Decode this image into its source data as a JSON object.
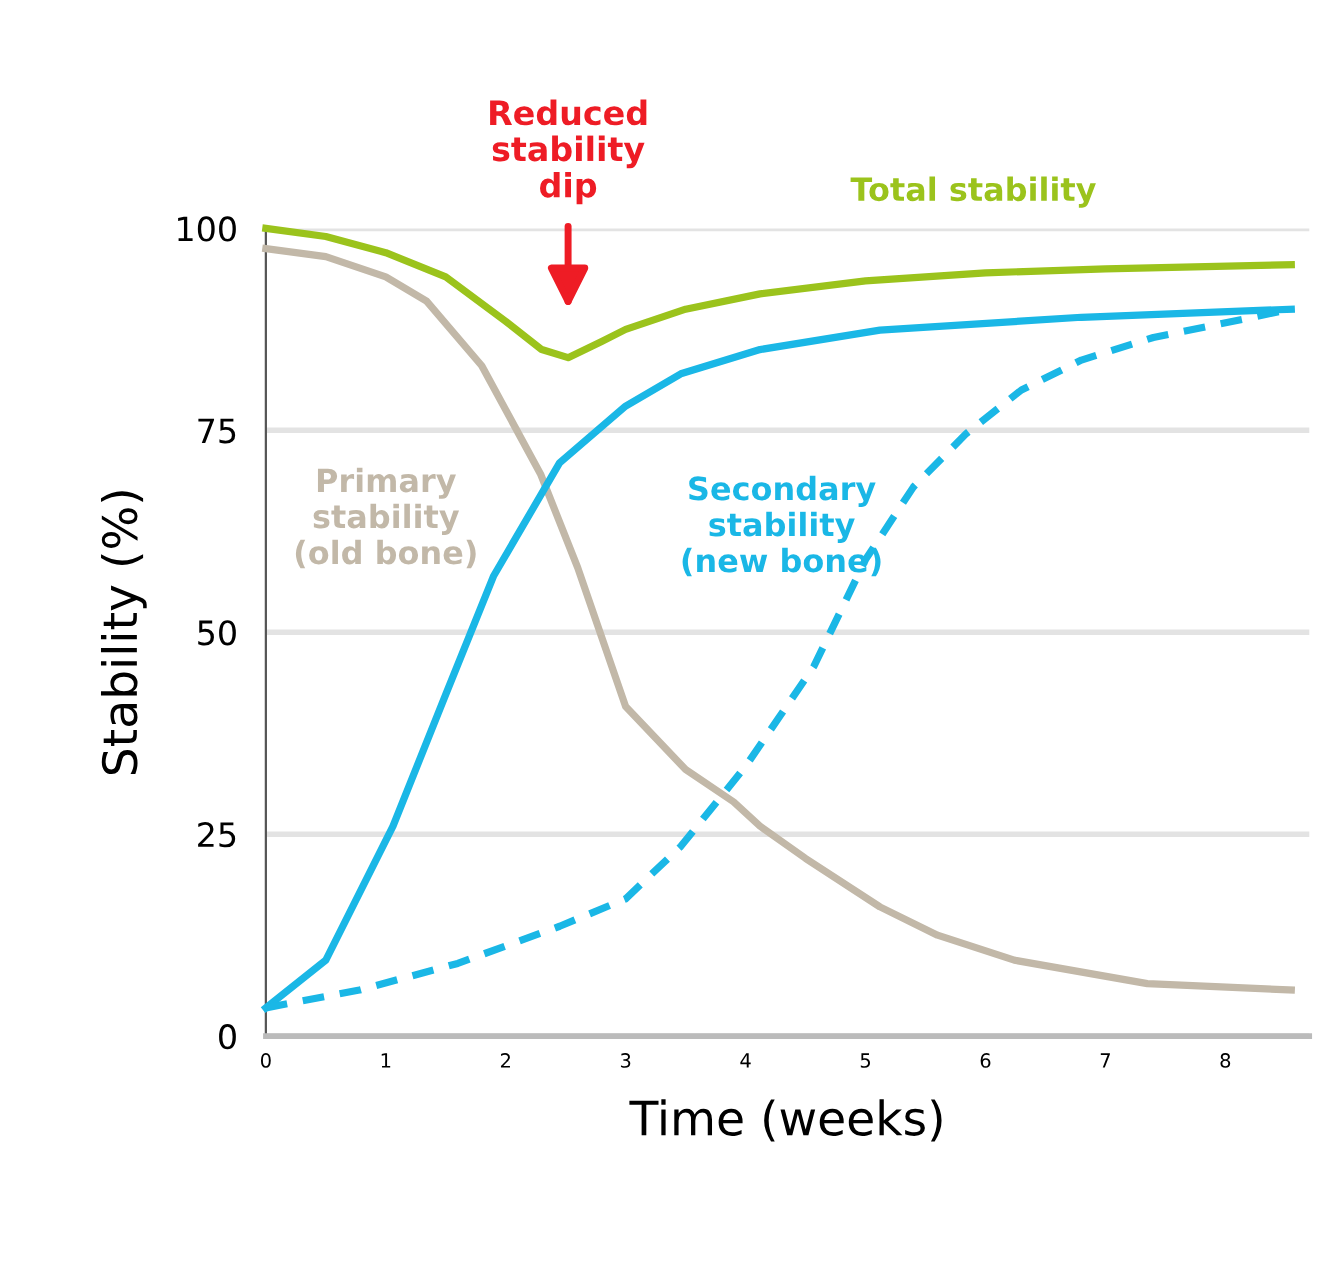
{
  "chart_data": {
    "type": "line",
    "xlabel": "Time (weeks)",
    "ylabel": "Stability (%)",
    "xlim": [
      0,
      8.7
    ],
    "ylim": [
      0,
      100
    ],
    "xticks": [
      0,
      1,
      2,
      3,
      4,
      5,
      6,
      7,
      8
    ],
    "yticks": [
      0,
      25,
      50,
      75,
      100
    ],
    "grid": "y",
    "marker": "none",
    "legend": false,
    "annotations": [
      "Reduced\nstability\ndip"
    ],
    "series": [
      {
        "name": "Total stability",
        "color": "#9bc31c",
        "line_style": "solid",
        "x": [
          0,
          0.5,
          1,
          1.5,
          2,
          2.3,
          2.52,
          2.8,
          3,
          3.5,
          4.12,
          5,
          6,
          7,
          8.55
        ],
        "values": [
          100,
          99,
          97,
          94,
          88.5,
          85,
          84,
          86,
          87.5,
          90,
          91.9,
          93.5,
          94.5,
          95,
          95.5
        ]
      },
      {
        "name": "Primary\nstability\n(old bone)",
        "color": "#c2b8a8",
        "line_style": "solid",
        "x": [
          0,
          0.5,
          1,
          1.34,
          1.8,
          2.29,
          2.6,
          3.0,
          3.5,
          3.9,
          4.12,
          4.5,
          5.12,
          5.6,
          6.24,
          7.35,
          8.55
        ],
        "values": [
          97.5,
          96.5,
          94,
          91,
          83,
          69.6,
          58,
          40.8,
          33,
          29,
          26,
          22,
          16,
          12.5,
          9.4,
          6.5,
          5.7
        ]
      },
      {
        "name": "Secondary\nstability\n(new bone)",
        "color": "#1ab7e6",
        "line_style": "solid",
        "x": [
          0,
          0.5,
          1.06,
          1.5,
          1.9,
          2.45,
          3.0,
          3.46,
          4.12,
          5.12,
          6.8,
          8.55
        ],
        "values": [
          3.5,
          9.4,
          26,
          42.3,
          57,
          71,
          78,
          82,
          85,
          87.4,
          89,
          90
        ]
      },
      {
        "color": "#1ab7e6",
        "line_style": "dashed",
        "x": [
          0,
          0.78,
          1.6,
          2.45,
          3.0,
          3.46,
          4.0,
          4.57,
          5.0,
          5.4,
          5.84,
          6.3,
          6.8,
          7.4,
          7.9,
          8.55
        ],
        "values": [
          3.5,
          5.7,
          9,
          13.6,
          17,
          23.5,
          33.4,
          45.8,
          59,
          68,
          74.6,
          80,
          83.7,
          86.5,
          88,
          90
        ]
      }
    ]
  }
}
